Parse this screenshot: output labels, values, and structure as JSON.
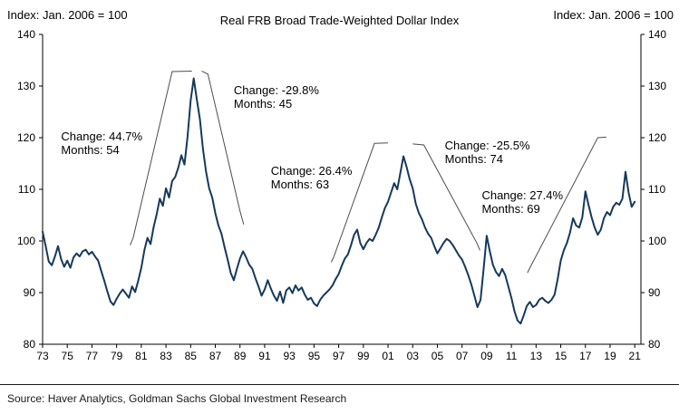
{
  "header": {
    "left_label": "Index: Jan. 2006 = 100",
    "title": "Real FRB Broad Trade-Weighted Dollar Index",
    "right_label": "Index: Jan. 2006 = 100"
  },
  "footer": {
    "source": "Source: Haver Analytics, Goldman Sachs Global Investment Research"
  },
  "chart_data": {
    "type": "line",
    "title": "Real FRB Broad Trade-Weighted Dollar Index",
    "ylabel_left": "Index: Jan. 2006 = 100",
    "ylabel_right": "Index: Jan. 2006 = 100",
    "ylim": [
      80,
      140
    ],
    "xlim": [
      1973,
      2021.5
    ],
    "yticks": [
      80,
      90,
      100,
      110,
      120,
      130,
      140
    ],
    "xtick_years": [
      1973,
      1975,
      1977,
      1979,
      1981,
      1983,
      1985,
      1987,
      1989,
      1991,
      1993,
      1995,
      1997,
      1999,
      2001,
      2003,
      2005,
      2007,
      2009,
      2011,
      2013,
      2015,
      2017,
      2019,
      2021
    ],
    "xtick_labels": [
      "73",
      "75",
      "77",
      "79",
      "81",
      "83",
      "85",
      "87",
      "89",
      "91",
      "93",
      "95",
      "97",
      "99",
      "01",
      "03",
      "05",
      "07",
      "09",
      "11",
      "13",
      "15",
      "17",
      "19",
      "21"
    ],
    "line_color": "#16395c",
    "trend_line_color": "#4d4d4d",
    "axis_color": "#000000",
    "x_start": 1973.0,
    "x_step": 0.25,
    "values": [
      101.8,
      99.0,
      96.0,
      95.3,
      97.0,
      99.0,
      96.5,
      95.0,
      96.2,
      94.8,
      96.8,
      97.6,
      97.0,
      98.0,
      98.3,
      97.4,
      97.9,
      97.0,
      96.2,
      94.2,
      92.3,
      90.2,
      88.3,
      87.6,
      88.8,
      89.8,
      90.6,
      89.8,
      89.0,
      91.2,
      90.1,
      92.3,
      94.8,
      98.2,
      100.6,
      99.4,
      102.7,
      105.2,
      108.2,
      106.8,
      110.2,
      108.4,
      111.6,
      112.4,
      114.2,
      116.6,
      114.8,
      120.2,
      127.2,
      131.5,
      127.4,
      123.6,
      117.8,
      113.4,
      110.2,
      108.4,
      105.4,
      103.0,
      101.4,
      98.8,
      96.4,
      93.8,
      92.4,
      94.6,
      96.6,
      98.0,
      96.8,
      95.4,
      94.6,
      92.8,
      91.2,
      89.4,
      90.6,
      92.4,
      90.8,
      89.4,
      88.4,
      90.2,
      88.0,
      90.4,
      91.0,
      89.9,
      91.4,
      90.4,
      91.0,
      89.6,
      88.6,
      89.0,
      87.9,
      87.4,
      88.6,
      89.4,
      90.0,
      90.6,
      91.4,
      92.6,
      93.6,
      95.2,
      96.6,
      97.4,
      99.2,
      101.2,
      102.2,
      99.6,
      98.4,
      99.6,
      100.4,
      100.0,
      101.2,
      102.6,
      104.6,
      106.4,
      107.6,
      109.4,
      111.2,
      110.0,
      113.2,
      116.4,
      114.4,
      112.0,
      110.2,
      107.2,
      105.4,
      104.2,
      102.6,
      101.4,
      100.6,
      99.0,
      97.6,
      98.6,
      99.6,
      100.4,
      100.0,
      99.2,
      98.2,
      97.2,
      96.4,
      95.0,
      93.4,
      91.6,
      89.4,
      87.2,
      88.6,
      94.6,
      101.0,
      98.0,
      95.4,
      94.0,
      93.2,
      94.6,
      93.4,
      91.2,
      89.0,
      86.4,
      84.6,
      84.0,
      85.6,
      87.4,
      88.2,
      87.2,
      87.6,
      88.6,
      89.0,
      88.4,
      88.0,
      88.6,
      89.6,
      92.6,
      96.2,
      98.2,
      99.6,
      101.6,
      104.4,
      103.0,
      102.6,
      104.6,
      109.6,
      107.0,
      104.6,
      102.6,
      101.2,
      102.2,
      104.4,
      105.6,
      105.0,
      106.6,
      107.4,
      107.0,
      108.2,
      113.4,
      109.4,
      106.6,
      107.6
    ],
    "annotations": [
      {
        "lines": [
          "Change: 44.7%",
          "Months: 54"
        ],
        "x": 1974.5,
        "y": 121.6
      },
      {
        "lines": [
          "Change: -29.8%",
          "Months: 45"
        ],
        "x": 1988.5,
        "y": 130.5
      },
      {
        "lines": [
          "Change: 26.4%",
          "Months: 63"
        ],
        "x": 1991.5,
        "y": 114.9
      },
      {
        "lines": [
          "Change: -25.5%",
          "Months: 74"
        ],
        "x": 2005.6,
        "y": 119.8
      },
      {
        "lines": [
          "Change: 27.4%",
          "Months: 69"
        ],
        "x": 2008.6,
        "y": 110.2
      }
    ],
    "trend_lines": [
      {
        "points": [
          [
            1980.1,
            99.2
          ],
          [
            1980.35,
            100.7
          ],
          [
            1983.5,
            132.8
          ],
          [
            1985.1,
            132.9
          ]
        ]
      },
      {
        "points": [
          [
            1985.9,
            132.9
          ],
          [
            1986.4,
            132.3
          ],
          [
            1989.0,
            105.8
          ],
          [
            1989.3,
            103.2
          ]
        ]
      },
      {
        "points": [
          [
            1996.4,
            95.9
          ],
          [
            1996.6,
            96.9
          ],
          [
            1999.9,
            118.9
          ],
          [
            2001.0,
            119.0
          ]
        ]
      },
      {
        "points": [
          [
            2003.0,
            118.8
          ],
          [
            2003.9,
            118.6
          ],
          [
            2008.2,
            99.6
          ],
          [
            2008.45,
            98.2
          ]
        ]
      },
      {
        "points": [
          [
            2012.3,
            93.8
          ],
          [
            2012.5,
            94.8
          ],
          [
            2018.0,
            120.0
          ],
          [
            2018.7,
            120.1
          ]
        ]
      }
    ]
  }
}
